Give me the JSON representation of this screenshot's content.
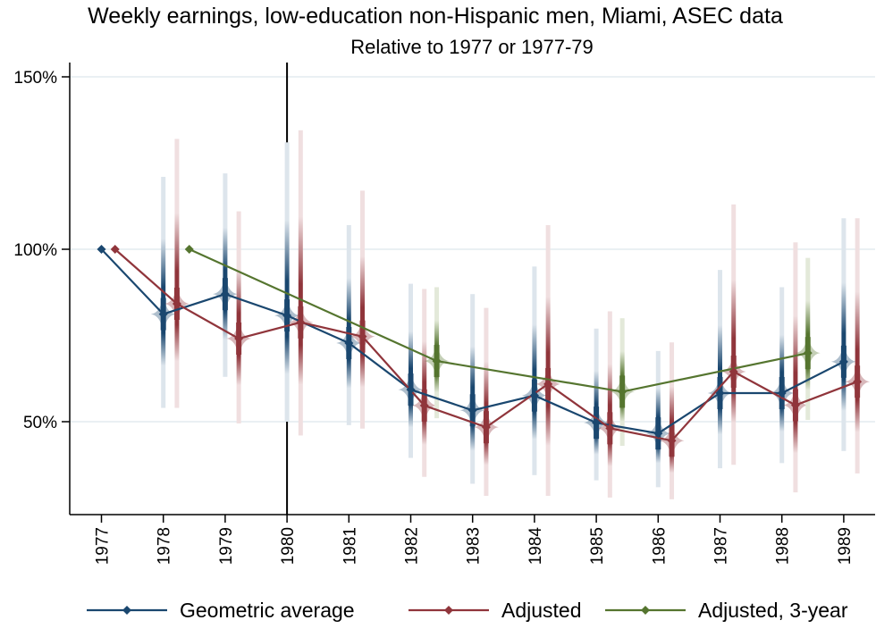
{
  "chart_data": {
    "type": "line",
    "title": "Weekly earnings, low-education non-Hispanic men, Miami, ASEC data",
    "subtitle": "Relative to 1977 or 1977-79",
    "xlabel": "",
    "ylabel": "",
    "xlim": [
      1976.5,
      1989.5
    ],
    "ylim": [
      23,
      154
    ],
    "grid": true,
    "reference_line_x": 1980,
    "y_ticks": [
      {
        "value": 50,
        "label": "50%"
      },
      {
        "value": 100,
        "label": "100%"
      },
      {
        "value": 150,
        "label": "150%"
      }
    ],
    "x_ticks": [
      {
        "value": 1977,
        "label": "1977"
      },
      {
        "value": 1978,
        "label": "1978"
      },
      {
        "value": 1979,
        "label": "1979"
      },
      {
        "value": 1980,
        "label": "1980"
      },
      {
        "value": 1981,
        "label": "1981"
      },
      {
        "value": 1982,
        "label": "1982"
      },
      {
        "value": 1983,
        "label": "1983"
      },
      {
        "value": 1984,
        "label": "1984"
      },
      {
        "value": 1985,
        "label": "1985"
      },
      {
        "value": 1986,
        "label": "1986"
      },
      {
        "value": 1987,
        "label": "1987"
      },
      {
        "value": 1988,
        "label": "1988"
      },
      {
        "value": 1989,
        "label": "1989"
      }
    ],
    "legend_position": "bottom",
    "series": [
      {
        "name": "Geometric average",
        "color": "#1a476f",
        "light_color": "#dde5ec",
        "offset": 0,
        "points": [
          {
            "x": 1977,
            "y": 100,
            "lo": null,
            "hi": null
          },
          {
            "x": 1978,
            "y": 81.2,
            "lo": 54,
            "hi": 121
          },
          {
            "x": 1979,
            "y": 87.0,
            "lo": 63,
            "hi": 122
          },
          {
            "x": 1980,
            "y": 80.8,
            "lo": 50,
            "hi": 131
          },
          {
            "x": 1981,
            "y": 72.8,
            "lo": 49,
            "hi": 107
          },
          {
            "x": 1982,
            "y": 59.3,
            "lo": 39.5,
            "hi": 90
          },
          {
            "x": 1983,
            "y": 53.3,
            "lo": 32,
            "hi": 87
          },
          {
            "x": 1984,
            "y": 57.6,
            "lo": 34.5,
            "hi": 95
          },
          {
            "x": 1985,
            "y": 49.7,
            "lo": 33,
            "hi": 77
          },
          {
            "x": 1986,
            "y": 46.6,
            "lo": 31,
            "hi": 70.5
          },
          {
            "x": 1987,
            "y": 58.3,
            "lo": 36.5,
            "hi": 94
          },
          {
            "x": 1988,
            "y": 58.3,
            "lo": 38,
            "hi": 89
          },
          {
            "x": 1989,
            "y": 67.4,
            "lo": 41.5,
            "hi": 109
          }
        ]
      },
      {
        "name": "Adjusted",
        "color": "#90353b",
        "light_color": "#f0dfe0",
        "offset": 0.22,
        "points": [
          {
            "x": 1977,
            "y": 100,
            "lo": null,
            "hi": null
          },
          {
            "x": 1978,
            "y": 84.2,
            "lo": 54,
            "hi": 132
          },
          {
            "x": 1979,
            "y": 74.1,
            "lo": 49.5,
            "hi": 111
          },
          {
            "x": 1980,
            "y": 78.8,
            "lo": 46,
            "hi": 134.5
          },
          {
            "x": 1981,
            "y": 74.7,
            "lo": 48,
            "hi": 117
          },
          {
            "x": 1982,
            "y": 54.7,
            "lo": 34,
            "hi": 88.5
          },
          {
            "x": 1983,
            "y": 48.4,
            "lo": 28.5,
            "hi": 83
          },
          {
            "x": 1984,
            "y": 60.9,
            "lo": 28.5,
            "hi": 107
          },
          {
            "x": 1985,
            "y": 48.1,
            "lo": 28,
            "hi": 82
          },
          {
            "x": 1986,
            "y": 44.5,
            "lo": 27.5,
            "hi": 73
          },
          {
            "x": 1987,
            "y": 64.5,
            "lo": 37.5,
            "hi": 113
          },
          {
            "x": 1988,
            "y": 54.8,
            "lo": 29.5,
            "hi": 102
          },
          {
            "x": 1989,
            "y": 61.6,
            "lo": 35,
            "hi": 109
          }
        ]
      },
      {
        "name": "Adjusted, 3-year",
        "color": "#55752f",
        "light_color": "#e3e9d9",
        "offset": 0.42,
        "points": [
          {
            "x": 1978,
            "y": 100,
            "lo": null,
            "hi": null
          },
          {
            "x": 1982,
            "y": 67.6,
            "lo": 51,
            "hi": 89
          },
          {
            "x": 1985,
            "y": 58.7,
            "lo": 43,
            "hi": 80
          },
          {
            "x": 1988,
            "y": 69.9,
            "lo": 50.5,
            "hi": 97.5
          }
        ]
      }
    ]
  }
}
